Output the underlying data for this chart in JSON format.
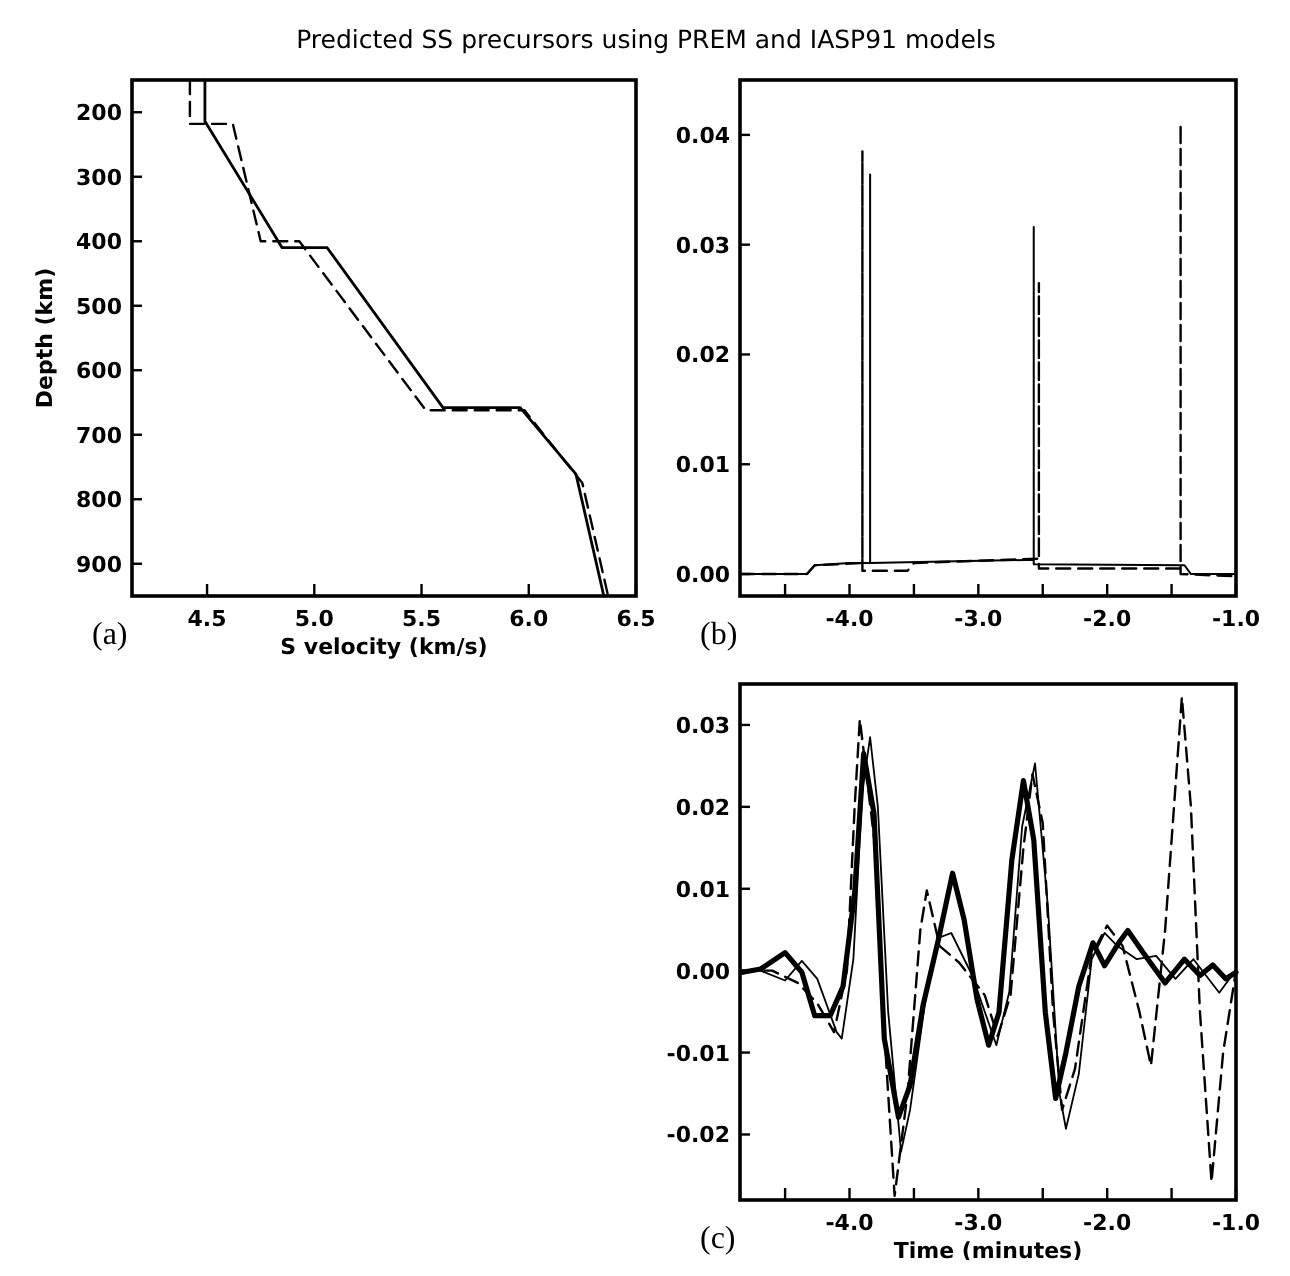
{
  "chart_data": [
    {
      "type": "line",
      "title": "Predicted SS precursors using PREM and IASP91 models",
      "xlabel": "S velocity (km/s)",
      "ylabel": "Depth (km)",
      "annotations": [
        "(a)"
      ],
      "xlim": [
        4.15,
        6.5
      ],
      "ylim": [
        950,
        150
      ],
      "xticks": [
        4.5,
        {
          "value": 5,
          "label": "5.0"
        },
        5.5,
        {
          "value": 6,
          "label": "6.0"
        },
        6.5
      ],
      "yticks": [
        200,
        300,
        400,
        500,
        600,
        700,
        800,
        900
      ],
      "series": [
        {
          "color": "#000000",
          "line_style": "solid",
          "x": [
            4.49,
            4.49,
            4.85,
            5.06,
            5.6,
            5.96,
            6.22,
            6.35
          ],
          "values": [
            150,
            214,
            410,
            410,
            658,
            658,
            761,
            950
          ]
        },
        {
          "color": "#000000",
          "line_style": "dashed",
          "x": [
            4.42,
            4.42,
            4.62,
            4.75,
            4.93,
            5.52,
            5.98,
            6.25,
            6.37
          ],
          "values": [
            150,
            218,
            218,
            400,
            400,
            662,
            662,
            775,
            950
          ]
        }
      ]
    },
    {
      "type": "line",
      "annotations": [
        "(b)"
      ],
      "xlim": [
        -4.85,
        -1.0
      ],
      "ylim": [
        -0.002,
        0.045
      ],
      "xticks": [
        {
          "value": -4.5,
          "label": null
        },
        {
          "value": -4,
          "label": "-4.0"
        },
        {
          "value": -3.5,
          "label": null
        },
        {
          "value": -3,
          "label": "-3.0"
        },
        {
          "value": -2.5,
          "label": null
        },
        {
          "value": -2,
          "label": "-2.0"
        },
        {
          "value": -1.5,
          "label": null
        },
        {
          "value": -1,
          "label": "-1.0"
        }
      ],
      "yticks": [
        {
          "value": 0,
          "label": "0.00"
        },
        {
          "value": 0.01,
          "label": "0.01"
        },
        {
          "value": 0.02,
          "label": "0.02"
        },
        {
          "value": 0.03,
          "label": "0.03"
        },
        {
          "value": 0.04,
          "label": "0.04"
        }
      ],
      "series": [
        {
          "color": "#000000",
          "line_style": "solid",
          "x": [
            -4.85,
            -4.33,
            -4.27,
            -4.0,
            -3.84,
            -3.84,
            -3.84,
            -2.57,
            -2.57,
            -2.57,
            -1.4,
            -1.35,
            -1.0
          ],
          "values": [
            0,
            0,
            0.0008,
            0.001,
            0.001,
            0.0364,
            0.001,
            0.0013,
            0.0316,
            0.0009,
            0.0008,
            0,
            0
          ]
        },
        {
          "color": "#000000",
          "line_style": "dashed",
          "x": [
            -4.85,
            -4.33,
            -4.27,
            -3.9,
            -3.9,
            -3.9,
            -3.55,
            -3.5,
            -2.53,
            -2.53,
            -2.53,
            -1.43,
            -1.43,
            -1.43,
            -1.0
          ],
          "values": [
            0,
            0,
            0.0008,
            0.001,
            0.0385,
            0.0003,
            0.0003,
            0.001,
            0.0014,
            0.0265,
            0.0005,
            0.0005,
            0.041,
            0,
            -0.0002
          ]
        }
      ]
    },
    {
      "type": "line",
      "xlabel": "Time (minutes)",
      "annotations": [
        "(c)"
      ],
      "xlim": [
        -4.85,
        -1.0
      ],
      "ylim": [
        -0.028,
        0.035
      ],
      "xticks": [
        {
          "value": -4.5,
          "label": null
        },
        {
          "value": -4,
          "label": "-4.0"
        },
        {
          "value": -3.5,
          "label": null
        },
        {
          "value": -3,
          "label": "-3.0"
        },
        {
          "value": -2.5,
          "label": null
        },
        {
          "value": -2,
          "label": "-2.0"
        },
        {
          "value": -1.5,
          "label": null
        },
        {
          "value": -1,
          "label": "-1.0"
        }
      ],
      "yticks": [
        {
          "value": -0.02,
          "label": "-0.02"
        },
        {
          "value": -0.01,
          "label": "-0.01"
        },
        {
          "value": 0,
          "label": "0.00"
        },
        {
          "value": 0.01,
          "label": "0.01"
        },
        {
          "value": 0.02,
          "label": "0.02"
        },
        {
          "value": 0.03,
          "label": "0.03"
        }
      ],
      "series": [
        {
          "color": "#000000",
          "line_style": "solid",
          "x": [
            -4.83,
            -4.69,
            -4.5,
            -4.37,
            -4.27,
            -4.15,
            -4.05,
            -3.96,
            -3.89,
            -3.81,
            -3.73,
            -3.62,
            -3.53,
            -3.43,
            -3.31,
            -3.2,
            -3.11,
            -3.01,
            -2.92,
            -2.84,
            -2.74,
            -2.65,
            -2.57,
            -2.48,
            -2.4,
            -2.32,
            -2.22,
            -2.11,
            -2.02,
            -1.91,
            -1.84,
            -1.72,
            -1.55,
            -1.4,
            -1.28,
            -1.18,
            -1.08,
            -1.0
          ],
          "values": [
            -0.0002,
            0.0002,
            0.0022,
            -0.0002,
            -0.0055,
            -0.0055,
            -0.0019,
            0.0095,
            0.0265,
            0.0192,
            -0.0083,
            -0.0179,
            -0.014,
            -0.0043,
            0.0038,
            0.0119,
            0.0062,
            -0.0035,
            -0.0091,
            -0.0051,
            0.0135,
            0.0232,
            0.016,
            -0.0051,
            -0.0156,
            -0.01,
            -0.0019,
            0.0034,
            0.0006,
            0.0034,
            0.0049,
            0.0022,
            -0.0015,
            0.0014,
            -0.0006,
            0.0007,
            -0.001,
            -0.0002
          ]
        },
        {
          "color": "#000000",
          "line_style": "solid",
          "x": [
            -4.83,
            -4.69,
            -4.5,
            -4.37,
            -4.25,
            -4.1,
            -4.06,
            -3.97,
            -3.9,
            -3.84,
            -3.78,
            -3.7,
            -3.6,
            -3.53,
            -3.41,
            -3.31,
            -3.21,
            -3.05,
            -2.86,
            -2.76,
            -2.66,
            -2.56,
            -2.46,
            -2.37,
            -2.32,
            -2.22,
            -2.12,
            -2.02,
            -1.92,
            -1.77,
            -1.62,
            -1.47,
            -1.33,
            -1.13,
            -1.0
          ],
          "values": [
            0,
            0,
            -0.0012,
            0.0012,
            -0.001,
            -0.0075,
            -0.0083,
            0.0014,
            0.022,
            0.0285,
            0.02,
            -0.005,
            -0.0221,
            -0.017,
            -0.0035,
            0.004,
            0.0046,
            -0.0005,
            -0.0091,
            -0.0026,
            0.0176,
            0.0253,
            0.0078,
            -0.015,
            -0.0193,
            -0.0126,
            0.0014,
            0.0046,
            0.003,
            0.0014,
            0.0018,
            -0.001,
            0.0014,
            -0.0027,
            0.0001
          ]
        },
        {
          "color": "#000000",
          "line_style": "dashed",
          "x": [
            -4.83,
            -4.6,
            -4.4,
            -4.25,
            -4.12,
            -4.02,
            -3.96,
            -3.92,
            -3.8,
            -3.72,
            -3.65,
            -3.55,
            -3.45,
            -3.4,
            -3.3,
            -3.15,
            -2.95,
            -2.85,
            -2.75,
            -2.65,
            -2.58,
            -2.5,
            -2.42,
            -2.35,
            -2.25,
            -2.12,
            -2.0,
            -1.88,
            -1.75,
            -1.66,
            -1.55,
            -1.42,
            -1.35,
            -1.28,
            -1.19,
            -1.1,
            -1.0
          ],
          "values": [
            0,
            0,
            -0.0015,
            -0.004,
            -0.0075,
            0,
            0.02,
            0.0307,
            0.015,
            -0.01,
            -0.0275,
            -0.015,
            0.005,
            0.0098,
            0.003,
            0.001,
            -0.003,
            -0.008,
            -0.003,
            0.015,
            0.024,
            0.018,
            -0.005,
            -0.017,
            -0.012,
            0.002,
            0.0055,
            0.003,
            -0.005,
            -0.0116,
            0.005,
            0.0334,
            0.02,
            -0.005,
            -0.0258,
            -0.01,
            0
          ]
        }
      ]
    }
  ]
}
